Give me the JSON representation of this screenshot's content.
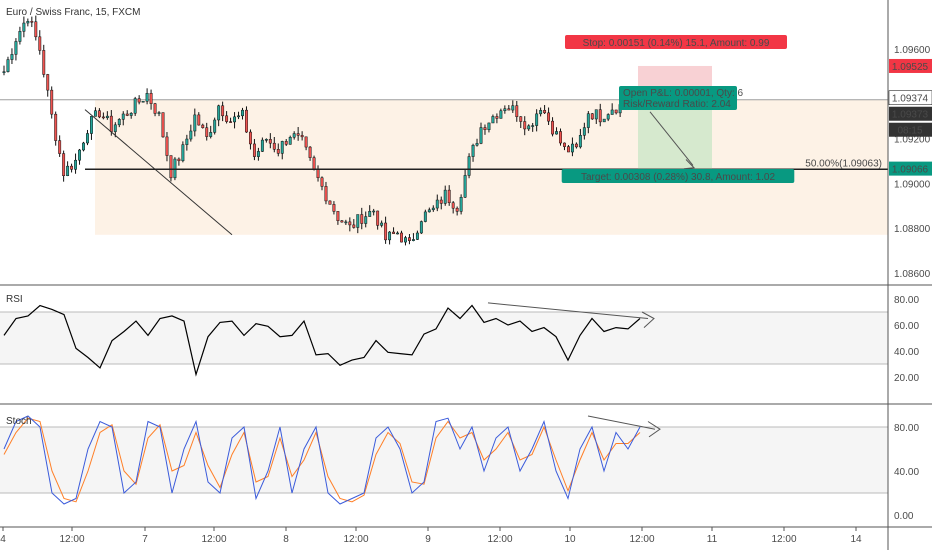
{
  "symbol_title": "Euro / Swiss Franc, 15, FXCM",
  "colors": {
    "up": "#26a69a",
    "down": "#ef5350",
    "candle": "#111111",
    "stop_zone": "#f7c9cc",
    "target_zone": "#cfe8c9",
    "range_box": "#fdf2e6",
    "stop_label": "#f23645",
    "target_label": "#089981",
    "rsi_line": "#000000",
    "stoch_k": "#3b5bdb",
    "stoch_d": "#ff7f27",
    "arrow": "#555555"
  },
  "main_panel": {
    "yaxis_ticks": [
      "1.09600",
      "1.09374",
      "1.09200",
      "1.09000",
      "1.08800",
      "1.08600"
    ],
    "price_tags": [
      {
        "text": "1.09525",
        "kind": "stop"
      },
      {
        "text": "1.09374",
        "kind": "last"
      },
      {
        "text": "1.09373",
        "kind": "current"
      },
      {
        "text": "08:15",
        "kind": "timer"
      },
      {
        "text": "1.09066",
        "kind": "target"
      }
    ],
    "fib_label": "50.00%(1.09063)",
    "stop_box_label": "Stop: 0.00151 (0.14%) 15.1, Amount: 0.99",
    "target_box_label": "Target: 0.00308 (0.28%) 30.8, Amount: 1.02",
    "pnl_label": "Open P&L: 0.00001, Qty: 6",
    "rr_label": "Risk/Reward Ratio: 2.04"
  },
  "rsi_panel": {
    "title": "RSI",
    "yaxis_ticks": [
      "80.00",
      "60.00",
      "40.00",
      "20.00"
    ]
  },
  "stoch_panel": {
    "title": "Stoch",
    "yaxis_ticks": [
      "80.00",
      "40.00",
      "0.00"
    ]
  },
  "x_axis_labels": [
    "4",
    "12:00",
    "7",
    "12:00",
    "8",
    "12:00",
    "9",
    "12:00",
    "10",
    "12:00",
    "11",
    "12:00",
    "14"
  ],
  "chart_data": {
    "type": "line",
    "title": "Euro / Swiss Franc, 15, FXCM",
    "xlabel": "",
    "ylabel": "",
    "ylim": [
      1.0855,
      1.0982
    ],
    "series": [
      {
        "values": [
          1.095,
          1.0965,
          1.0975,
          1.096,
          1.093,
          1.0905,
          1.091,
          1.0925,
          1.0932,
          1.0925,
          1.093,
          1.0935,
          1.094,
          1.093,
          1.0905,
          1.0915,
          1.093,
          1.092,
          1.0935,
          1.0928,
          1.093,
          1.0912,
          1.092,
          1.0915,
          1.0922,
          1.0918,
          1.0905,
          1.0895,
          1.0885,
          1.088,
          1.0885,
          1.0888,
          1.0875,
          1.0878,
          1.0872,
          1.0885,
          1.0888,
          1.0895,
          1.089,
          1.091,
          1.0925,
          1.093,
          1.0935,
          1.0932,
          1.0925,
          1.0935,
          1.0925,
          1.0915,
          1.0915,
          1.0932,
          1.093,
          1.0934,
          1.0935,
          1.0937
        ]
      }
    ],
    "indicators": {
      "rsi": {
        "ylim": [
          0,
          90
        ],
        "levels": [
          70,
          30
        ],
        "values": [
          55,
          62,
          70,
          72,
          75,
          65,
          45,
          32,
          30,
          45,
          58,
          60,
          55,
          62,
          70,
          60,
          25,
          48,
          65,
          60,
          55,
          58,
          62,
          48,
          55,
          60,
          40,
          35,
          32,
          30,
          38,
          45,
          42,
          35,
          40,
          50,
          60,
          70,
          68,
          72,
          65,
          62,
          63,
          60,
          58,
          55,
          54,
          30,
          55,
          62,
          58,
          55,
          60,
          62
        ]
      },
      "stoch": {
        "ylim": [
          -10,
          100
        ],
        "levels": [
          80,
          20
        ],
        "k": [
          60,
          85,
          90,
          80,
          20,
          10,
          15,
          60,
          85,
          80,
          20,
          30,
          85,
          80,
          20,
          60,
          85,
          30,
          20,
          70,
          80,
          15,
          40,
          80,
          20,
          60,
          80,
          20,
          10,
          15,
          20,
          70,
          80,
          60,
          20,
          30,
          85,
          88,
          60,
          80,
          40,
          70,
          80,
          40,
          60,
          85,
          40,
          15,
          60,
          80,
          40,
          75,
          60,
          80
        ],
        "d": [
          55,
          75,
          88,
          85,
          40,
          15,
          12,
          40,
          75,
          82,
          40,
          28,
          70,
          82,
          40,
          45,
          75,
          45,
          25,
          55,
          75,
          30,
          35,
          70,
          35,
          50,
          75,
          35,
          15,
          12,
          18,
          55,
          75,
          65,
          30,
          28,
          70,
          85,
          70,
          75,
          50,
          60,
          75,
          50,
          55,
          80,
          50,
          22,
          50,
          75,
          50,
          65,
          65,
          75
        ]
      }
    }
  }
}
